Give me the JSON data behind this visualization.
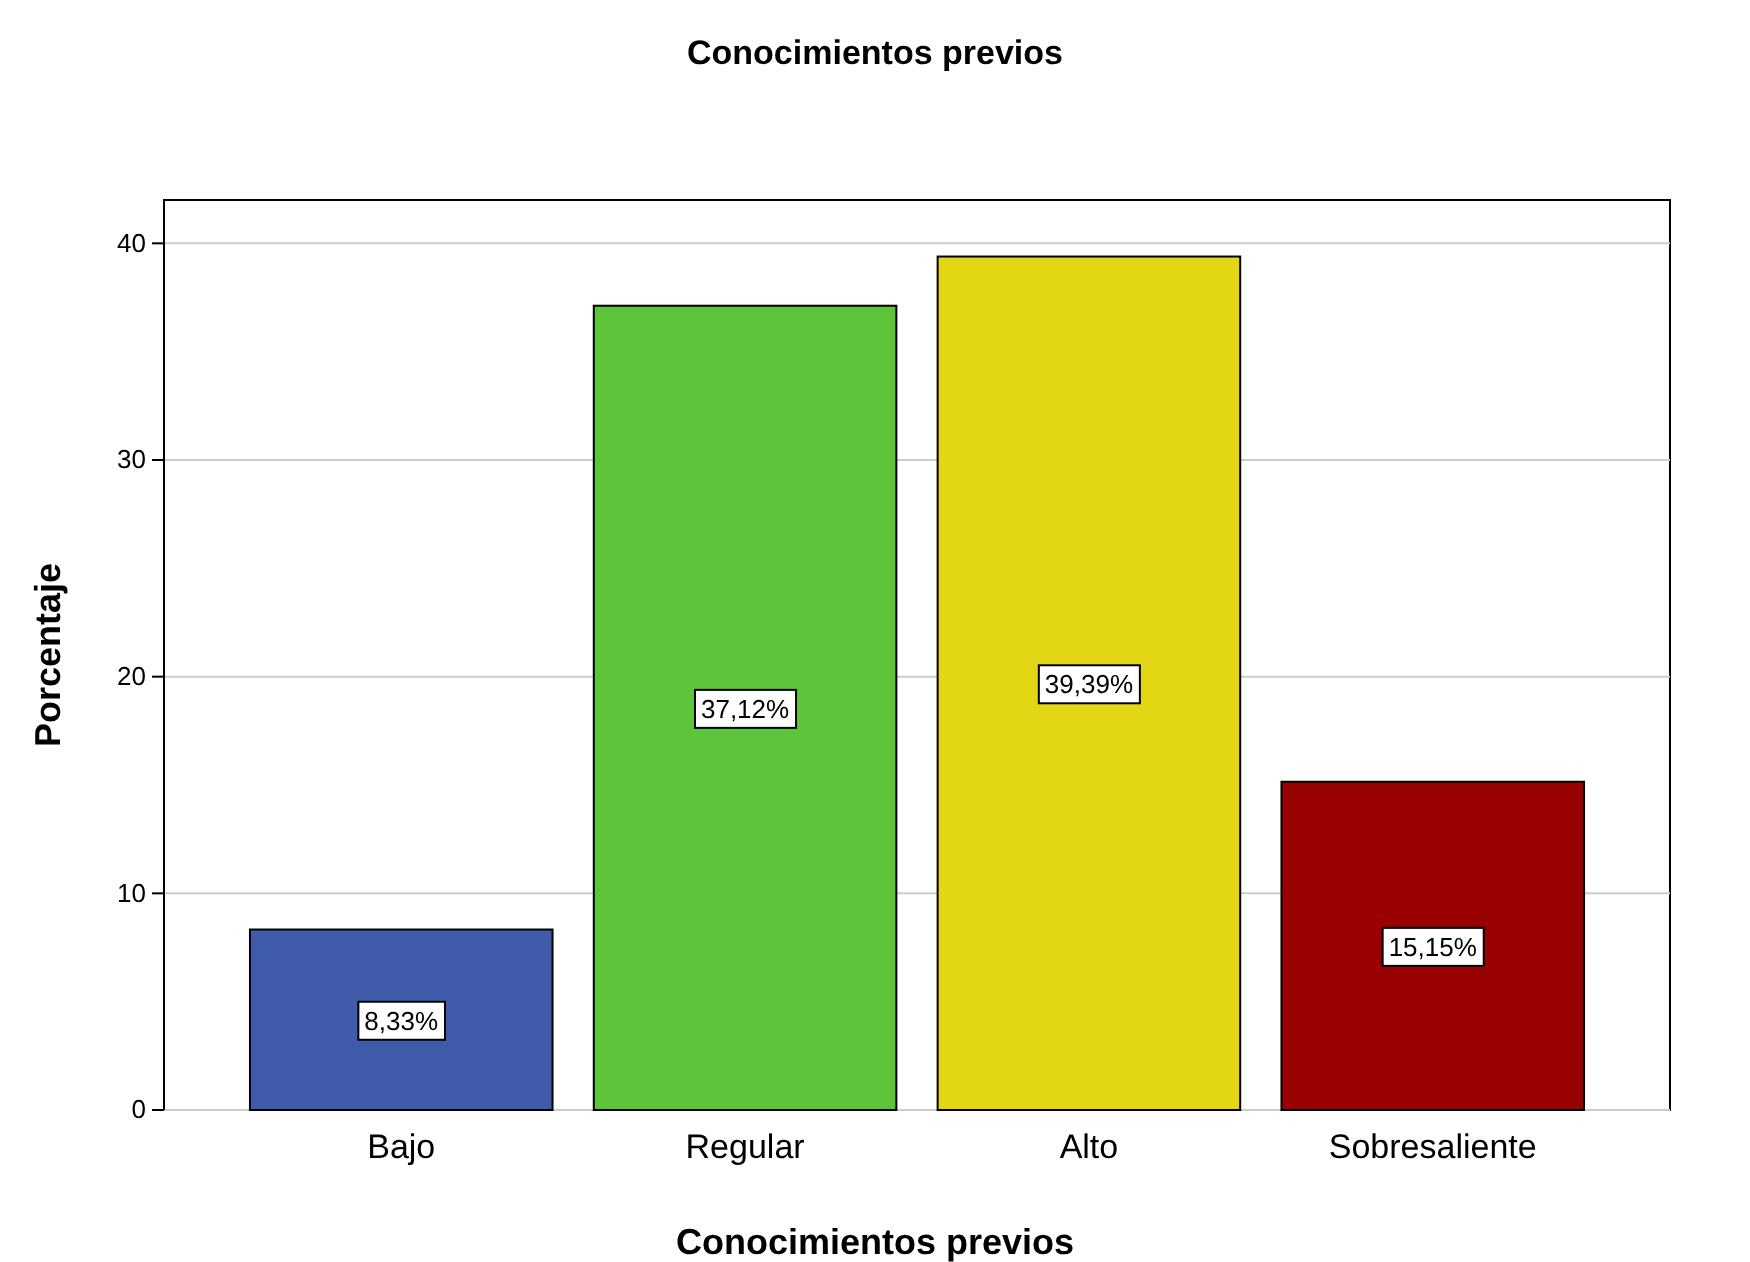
{
  "chart_data": {
    "type": "bar",
    "title": "Conocimientos previos",
    "xlabel": "Conocimientos previos",
    "ylabel": "Porcentaje",
    "categories": [
      "Bajo",
      "Regular",
      "Alto",
      "Sobresaliente"
    ],
    "values": [
      8.33,
      37.12,
      39.39,
      15.15
    ],
    "colors": [
      "#3f5ba9",
      "#5ec43a",
      "#e3d715",
      "#990000"
    ],
    "value_labels": [
      "8,33%",
      "37,12%",
      "39,39%",
      "15,15%"
    ],
    "ylim": [
      0,
      42
    ],
    "yticks": [
      0,
      10,
      20,
      30,
      40
    ],
    "grid": "y"
  }
}
